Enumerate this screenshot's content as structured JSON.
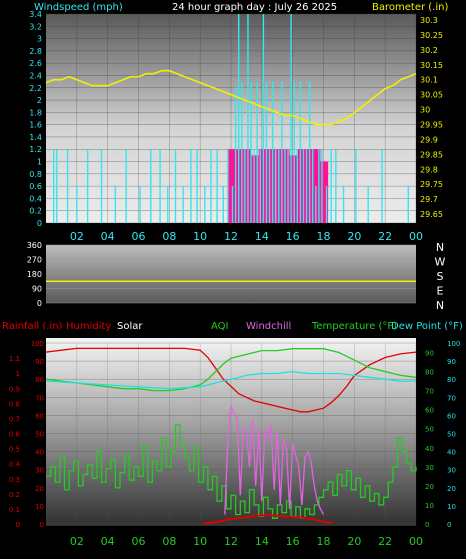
{
  "header": {
    "left": "Windspeed (mph)",
    "center": "24 hour graph day : July 26 2025",
    "right": "Barometer (.in)"
  },
  "time_ticks": [
    "02",
    "04",
    "06",
    "08",
    "10",
    "12",
    "14",
    "16",
    "18",
    "20",
    "22",
    "00"
  ],
  "colors": {
    "wind": "#33e6f0",
    "barometer": "#f0f000",
    "rain": "#e00000",
    "humidity": "#e00000",
    "solar": "#ffffff",
    "aqi": "#22cc22",
    "windchill": "#e066e0",
    "temperature": "#22cc22",
    "dewpoint": "#22e0e0",
    "gust_fill": "#ff1493",
    "wind_dir": "#f0f000"
  },
  "chart_data": [
    {
      "type": "line",
      "title": "24 hour graph day : July 26 2025",
      "x_range": [
        0,
        24
      ],
      "x_unit": "hours",
      "y_left": {
        "label": "Windspeed (mph)",
        "range": [
          0,
          3.4
        ],
        "ticks": [
          "0",
          "0.2",
          "0.4",
          "0.6",
          "0.8",
          "1",
          "1.2",
          "1.4",
          "1.6",
          "1.8",
          "2",
          "2.2",
          "2.4",
          "2.6",
          "2.8",
          "3",
          "3.2",
          "3.4"
        ]
      },
      "y_right": {
        "label": "Barometer (.in)",
        "range": [
          29.62,
          30.32
        ],
        "ticks": [
          "29.65",
          "29.7",
          "29.75",
          "29.8",
          "29.85",
          "29.9",
          "29.95",
          "30",
          "30.05",
          "30.1",
          "30.15",
          "30.2",
          "30.25",
          "30.3"
        ]
      },
      "series": [
        {
          "name": "Barometer (.in)",
          "axis": "right",
          "x": [
            0,
            0.5,
            1,
            1.5,
            2,
            2.5,
            3,
            3.5,
            4,
            4.5,
            5,
            5.5,
            6,
            6.5,
            7,
            7.5,
            8,
            8.5,
            9,
            9.5,
            10,
            10.5,
            11,
            11.5,
            12,
            12.5,
            13,
            13.5,
            14,
            14.5,
            15,
            15.5,
            16,
            16.5,
            17,
            17.5,
            18,
            18.5,
            19,
            19.5,
            20,
            20.5,
            21,
            21.5,
            22,
            22.5,
            23,
            23.5,
            24
          ],
          "y": [
            30.09,
            30.1,
            30.1,
            30.11,
            30.1,
            30.09,
            30.08,
            30.08,
            30.08,
            30.09,
            30.1,
            30.11,
            30.11,
            30.12,
            30.12,
            30.13,
            30.13,
            30.12,
            30.11,
            30.1,
            30.09,
            30.08,
            30.07,
            30.06,
            30.05,
            30.04,
            30.03,
            30.02,
            30.01,
            30.0,
            29.99,
            29.98,
            29.98,
            29.97,
            29.96,
            29.95,
            29.95,
            29.95,
            29.96,
            29.97,
            29.99,
            30.01,
            30.03,
            30.05,
            30.07,
            30.08,
            30.1,
            30.11,
            30.12
          ]
        },
        {
          "name": "Windspeed (mph)",
          "axis": "left",
          "kind": "spikes",
          "x": [
            0.5,
            0.7,
            1.4,
            2.0,
            2.7,
            3.6,
            4.5,
            5.2,
            6.1,
            6.8,
            7.4,
            7.9,
            8.4,
            8.9,
            9.4,
            9.8,
            10.3,
            10.7,
            11.1,
            11.5,
            11.8,
            12.1,
            12.3,
            12.5,
            12.7,
            12.9,
            13.1,
            13.3,
            13.5,
            13.7,
            13.9,
            14.1,
            14.3,
            14.5,
            14.7,
            14.9,
            15.1,
            15.3,
            15.5,
            15.7,
            15.9,
            16.1,
            16.3,
            16.5,
            16.7,
            16.9,
            17.1,
            17.3,
            17.5,
            17.7,
            17.9,
            18.2,
            18.5,
            18.8,
            19.3,
            20.1,
            20.9,
            21.8,
            23.5
          ],
          "y": [
            1.2,
            1.2,
            1.2,
            0.6,
            1.2,
            1.2,
            0.6,
            1.2,
            0.6,
            1.2,
            1.2,
            0.6,
            1.2,
            0.6,
            1.2,
            1.2,
            0.6,
            1.2,
            1.2,
            0.6,
            1.2,
            0.6,
            2.2,
            3.4,
            2.3,
            1.2,
            3.4,
            2.3,
            1.2,
            2.3,
            1.2,
            3.4,
            2.3,
            1.2,
            2.3,
            1.2,
            1.2,
            2.3,
            1.2,
            1.2,
            3.4,
            2.3,
            1.2,
            2.3,
            1.2,
            1.2,
            2.3,
            1.2,
            0.6,
            1.2,
            1.2,
            0.6,
            1.2,
            1.2,
            0.6,
            1.2,
            0.6,
            1.2,
            0.6
          ]
        },
        {
          "name": "Gust",
          "axis": "left",
          "kind": "filled",
          "x": [
            11.8,
            12.3,
            12.8,
            13.3,
            13.8,
            14.3,
            14.8,
            15.3,
            15.8,
            16.3,
            16.8,
            17.3,
            17.8
          ],
          "y": [
            1.2,
            1.2,
            1.2,
            1.1,
            1.2,
            1.2,
            1.2,
            1.2,
            1.1,
            1.2,
            1.2,
            1.2,
            1.0
          ]
        }
      ]
    },
    {
      "type": "line",
      "x_range": [
        0,
        24
      ],
      "y_left": {
        "range": [
          0,
          360
        ],
        "ticks": [
          "0",
          "90",
          "180",
          "270",
          "360"
        ]
      },
      "right_labels": [
        "N",
        "W",
        "S",
        "E",
        "N"
      ],
      "series": [
        {
          "name": "Wind direction",
          "x": [
            0,
            24
          ],
          "y": [
            135,
            135
          ]
        }
      ]
    },
    {
      "type": "line",
      "x_range": [
        0,
        24
      ],
      "y_left_outer": {
        "label": "Rainfall (.in)",
        "range": [
          0,
          1.2
        ],
        "ticks": [
          "0",
          "0.1",
          "0.2",
          "0.3",
          "0.4",
          "0.5",
          "0.6",
          "0.7",
          "0.8",
          "0.9",
          "1",
          "1.1"
        ]
      },
      "y_left_inner": {
        "label": "Humidity",
        "range": [
          0,
          100
        ],
        "ticks": [
          "0",
          "10",
          "20",
          "30",
          "40",
          "50",
          "60",
          "70",
          "80",
          "90",
          "100"
        ]
      },
      "y_right_inner": {
        "label": "Temperature (°F)",
        "range": [
          0,
          95
        ],
        "ticks": [
          "0",
          "10",
          "20",
          "30",
          "40",
          "50",
          "60",
          "70",
          "80",
          "90"
        ]
      },
      "y_right_outer": {
        "label": "Dew Point (°F)",
        "range": [
          0,
          100
        ],
        "ticks": [
          "0",
          "10",
          "20",
          "30",
          "40",
          "50",
          "60",
          "70",
          "80",
          "90",
          "100"
        ]
      },
      "legend": [
        "Rainfall (.in)",
        "Humidity",
        "Solar",
        "AQI",
        "Windchill",
        "Temperature (°F)",
        "Dew Point (°F)"
      ],
      "series": [
        {
          "name": "Humidity",
          "axis": "humidity",
          "x": [
            0,
            1,
            2,
            3,
            4,
            5,
            6,
            7,
            8,
            9,
            10,
            10.5,
            11,
            11.5,
            12,
            12.5,
            13,
            13.5,
            14,
            14.5,
            15,
            15.5,
            16,
            16.5,
            17,
            17.5,
            18,
            18.5,
            19,
            19.5,
            20,
            21,
            22,
            23,
            24
          ],
          "y": [
            95,
            96,
            97,
            97,
            97,
            97,
            97,
            97,
            97,
            97,
            96,
            92,
            86,
            80,
            76,
            72,
            70,
            68,
            67,
            66,
            65,
            64,
            63,
            62,
            62,
            63,
            64,
            67,
            71,
            76,
            82,
            88,
            92,
            94,
            95
          ]
        },
        {
          "name": "Temperature (°F)",
          "axis": "temp",
          "x": [
            0,
            1,
            2,
            3,
            4,
            5,
            6,
            7,
            8,
            9,
            10,
            10.5,
            11,
            11.5,
            12,
            12.5,
            13,
            13.5,
            14,
            15,
            16,
            17,
            18,
            18.5,
            19,
            19.5,
            20,
            21,
            22,
            23,
            24
          ],
          "y": [
            76,
            75,
            74,
            73,
            72,
            71,
            71,
            70,
            70,
            71,
            73,
            76,
            80,
            84,
            87,
            88,
            89,
            90,
            91,
            91,
            92,
            92,
            92,
            91,
            90,
            88,
            86,
            82,
            80,
            78,
            77
          ]
        },
        {
          "name": "Dew Point (°F)",
          "axis": "temp",
          "x": [
            0,
            2,
            4,
            6,
            8,
            10,
            11,
            12,
            13,
            14,
            15,
            16,
            17,
            18,
            19,
            20,
            21,
            22,
            23,
            24
          ],
          "y": [
            75,
            74,
            73,
            72,
            71,
            72,
            74,
            76,
            78,
            79,
            79,
            80,
            79,
            79,
            79,
            78,
            77,
            76,
            75,
            75
          ]
        },
        {
          "name": "AQI",
          "axis": "temp",
          "x": [
            0,
            0.3,
            0.6,
            0.9,
            1.2,
            1.5,
            1.8,
            2.1,
            2.4,
            2.7,
            3.0,
            3.3,
            3.6,
            3.9,
            4.2,
            4.5,
            4.8,
            5.1,
            5.4,
            5.7,
            6.0,
            6.3,
            6.6,
            6.9,
            7.2,
            7.5,
            7.8,
            8.1,
            8.4,
            8.7,
            9.0,
            9.3,
            9.6,
            9.9,
            10.2,
            10.5,
            10.8,
            11.1,
            11.4,
            11.7,
            12.0,
            12.3,
            12.6,
            12.9,
            13.2,
            13.5,
            13.8,
            14.1,
            14.4,
            14.7,
            15.0,
            15.3,
            15.6,
            15.9,
            16.2,
            16.5,
            16.8,
            17.1,
            17.4,
            17.7,
            18.0,
            18.3,
            18.6,
            18.9,
            19.2,
            19.5,
            19.8,
            20.1,
            20.4,
            20.7,
            21.0,
            21.3,
            21.6,
            21.9,
            22.2,
            22.5,
            22.8,
            23.1,
            23.4,
            23.7,
            24.0
          ],
          "y": [
            25,
            30,
            22,
            35,
            18,
            28,
            33,
            20,
            26,
            31,
            24,
            38,
            22,
            29,
            34,
            19,
            27,
            36,
            23,
            30,
            25,
            41,
            22,
            33,
            28,
            45,
            30,
            38,
            52,
            42,
            35,
            28,
            40,
            22,
            30,
            18,
            25,
            12,
            20,
            8,
            15,
            5,
            12,
            6,
            18,
            10,
            4,
            14,
            8,
            3,
            10,
            6,
            12,
            4,
            9,
            3,
            8,
            5,
            10,
            14,
            18,
            22,
            15,
            26,
            20,
            28,
            18,
            24,
            14,
            20,
            12,
            16,
            10,
            14,
            22,
            30,
            45,
            38,
            32,
            28,
            30
          ]
        },
        {
          "name": "Windchill",
          "axis": "temp",
          "x": [
            11.6,
            11.8,
            12.0,
            12.2,
            12.4,
            12.6,
            12.8,
            13.0,
            13.2,
            13.4,
            13.6,
            13.8,
            14.0,
            14.2,
            14.4,
            14.6,
            14.8,
            15.0,
            15.2,
            15.4,
            15.6,
            15.8,
            16.0,
            16.2,
            16.4,
            16.6,
            16.8,
            17.0,
            17.2,
            17.4,
            17.6,
            17.8,
            18.0
          ],
          "y": [
            5,
            45,
            62,
            58,
            55,
            15,
            50,
            48,
            30,
            55,
            20,
            50,
            12,
            50,
            45,
            52,
            18,
            50,
            10,
            45,
            40,
            8,
            42,
            36,
            30,
            10,
            35,
            38,
            32,
            20,
            12,
            8,
            5
          ]
        },
        {
          "name": "Solar",
          "axis": "rain",
          "x": [
            10.2,
            10.8,
            11.4,
            12.0,
            12.6,
            13.2,
            13.8,
            14.4,
            15.0,
            15.6,
            16.2,
            16.8,
            17.4,
            18.0,
            18.6
          ],
          "y": [
            0.003,
            0.01,
            0.02,
            0.035,
            0.04,
            0.05,
            0.055,
            0.06,
            0.055,
            0.05,
            0.045,
            0.04,
            0.03,
            0.015,
            0.005
          ]
        }
      ]
    }
  ]
}
